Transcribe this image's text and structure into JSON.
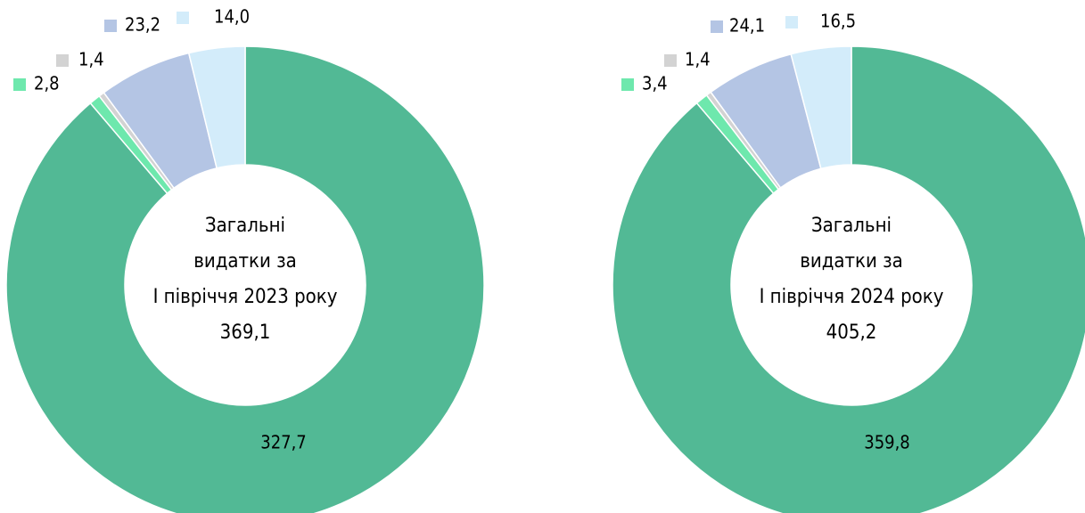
{
  "chart_data": [
    {
      "type": "donut",
      "values": [
        327.7,
        2.8,
        1.4,
        23.2,
        14.0
      ],
      "value_labels": [
        "327,7",
        "2,8",
        "1,4",
        "23,2",
        "14,0"
      ],
      "colors": [
        "#52b995",
        "#6ee8ad",
        "#d3d3d3",
        "#b4c5e4",
        "#d3ecfa"
      ],
      "center_text": [
        "Загальні",
        "видатки за",
        "І півріччя 2023 року",
        "369,1"
      ]
    },
    {
      "type": "donut",
      "values": [
        359.8,
        3.4,
        1.4,
        24.1,
        16.5
      ],
      "value_labels": [
        "359,8",
        "3,4",
        "1,4",
        "24,1",
        "16,5"
      ],
      "colors": [
        "#52b995",
        "#6ee8ad",
        "#d3d3d3",
        "#b4c5e4",
        "#d3ecfa"
      ],
      "center_text": [
        "Загальні",
        "видатки за",
        "І півріччя 2024 року",
        "405,2"
      ]
    }
  ]
}
